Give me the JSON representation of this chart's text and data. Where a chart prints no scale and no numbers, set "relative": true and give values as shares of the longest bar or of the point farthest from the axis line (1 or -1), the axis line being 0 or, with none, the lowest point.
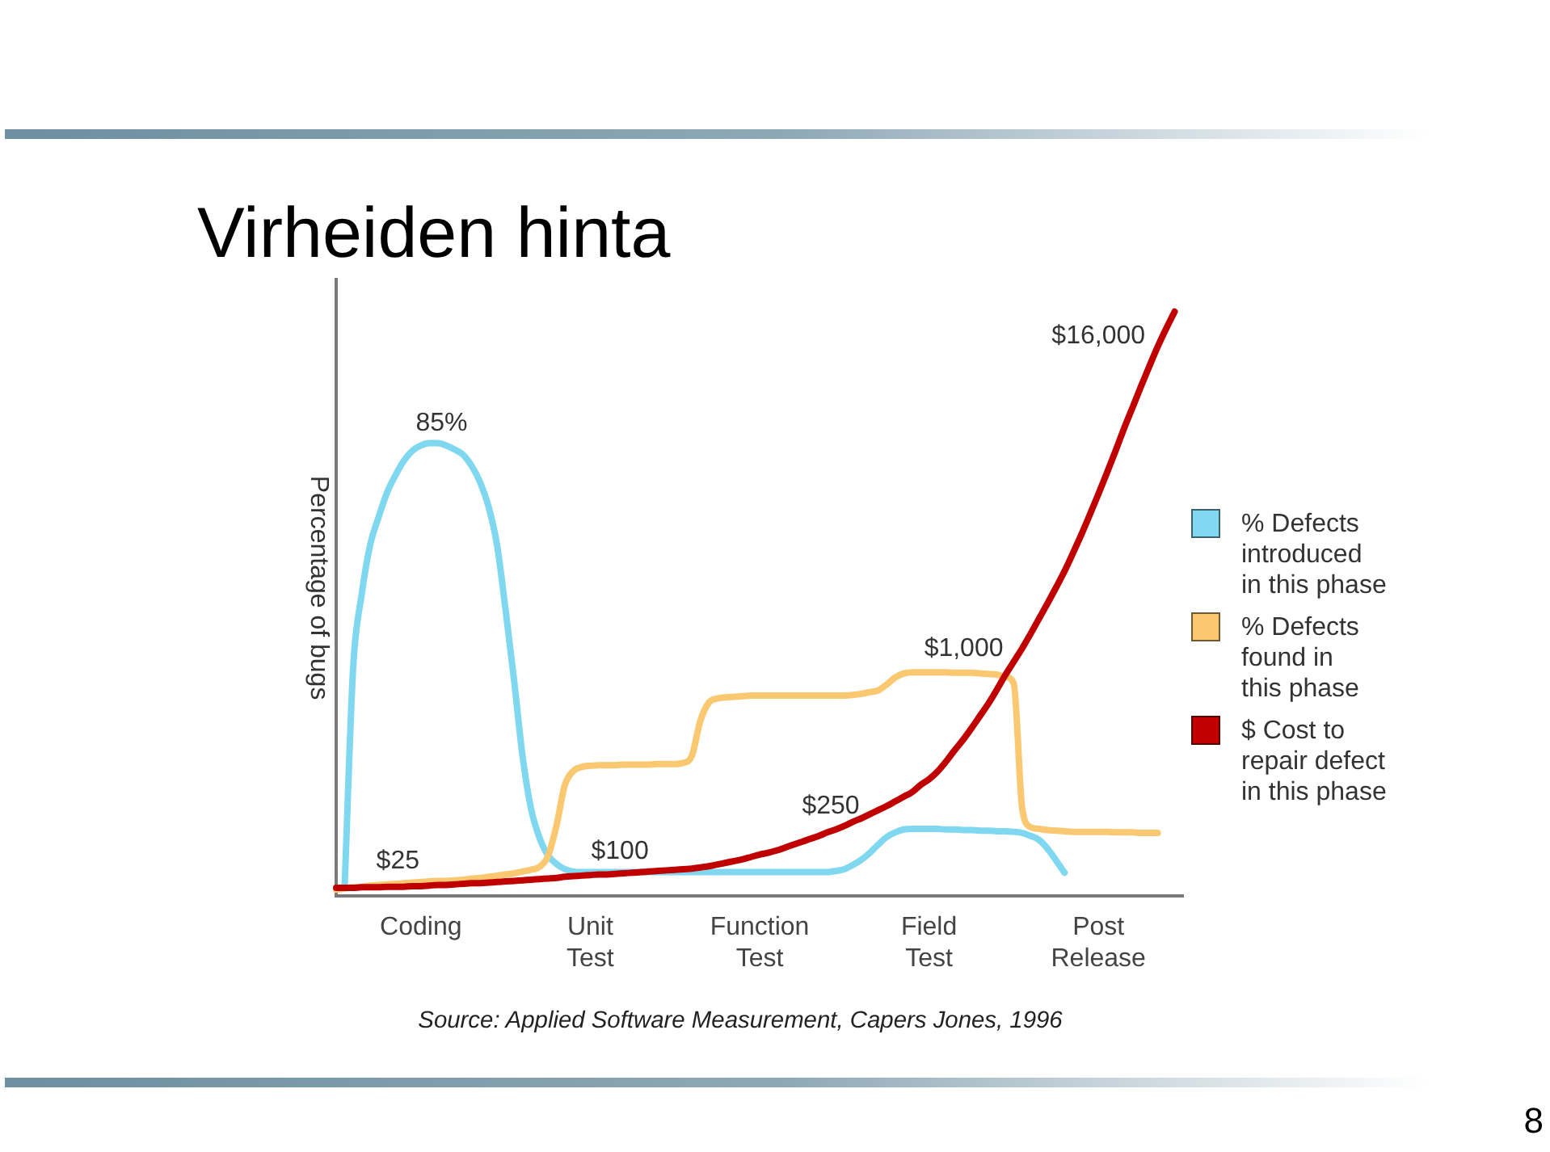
{
  "chart_data": {
    "type": "line",
    "title": "Virheiden hinta",
    "ylabel": "Percentage of bugs",
    "relative": true,
    "categories": [
      null,
      null,
      null,
      null,
      null,
      null,
      null,
      null,
      null,
      null,
      "Coding",
      null,
      null,
      null,
      null,
      null,
      null,
      null,
      null,
      null,
      null,
      null,
      null,
      null,
      null,
      null,
      null,
      null,
      null,
      null,
      "Unit Test",
      null,
      null,
      null,
      null,
      null,
      null,
      null,
      null,
      null,
      null,
      null,
      null,
      null,
      null,
      null,
      null,
      null,
      null,
      null,
      "Function Test",
      null,
      null,
      null,
      null,
      null,
      null,
      null,
      null,
      null,
      null,
      null,
      null,
      null,
      null,
      null,
      null,
      null,
      null,
      null,
      "Field Test",
      null,
      null,
      null,
      null,
      null,
      null,
      null,
      null,
      null,
      null,
      null,
      null,
      null,
      null,
      null,
      null,
      null,
      null,
      null,
      "Post Release",
      null,
      null,
      null,
      null,
      null,
      null,
      null,
      null,
      null,
      null
    ],
    "series": [
      {
        "name": "% Defects introduced in this phase",
        "color": "#80d8f0",
        "values": [
          null,
          0.017,
          0.39,
          0.515,
          0.6,
          0.648,
          0.69,
          0.72,
          0.745,
          0.762,
          0.771,
          0.775,
          0.775,
          0.771,
          0.764,
          0.755,
          0.736,
          0.708,
          0.666,
          0.6,
          0.49,
          0.37,
          0.24,
          0.15,
          0.1,
          0.07,
          0.055,
          0.046,
          0.042,
          0.041,
          0.041,
          0.041,
          0.041,
          0.041,
          0.041,
          0.041,
          0.041,
          0.041,
          0.041,
          0.041,
          0.041,
          0.041,
          0.041,
          0.041,
          0.041,
          0.041,
          0.041,
          0.041,
          0.041,
          0.041,
          0.041,
          0.041,
          0.041,
          0.041,
          0.041,
          0.041,
          0.041,
          0.041,
          0.041,
          0.043,
          0.046,
          0.053,
          0.062,
          0.074,
          0.088,
          0.101,
          0.109,
          0.114,
          0.115,
          0.115,
          0.115,
          0.115,
          0.114,
          0.114,
          0.113,
          0.113,
          0.112,
          0.112,
          0.111,
          0.111,
          0.11,
          0.108,
          0.103,
          0.096,
          0.081,
          0.061,
          0.04,
          null,
          null,
          null,
          null,
          null,
          null,
          null,
          null,
          null,
          null,
          null,
          null,
          null,
          null
        ]
      },
      {
        "name": "% Defects found in this phase",
        "color": "#f9c870",
        "values": [
          0.011,
          0.013,
          0.015,
          0.016,
          0.018,
          0.019,
          0.02,
          0.021,
          0.022,
          0.023,
          0.024,
          0.025,
          0.026,
          0.026,
          0.027,
          0.028,
          0.03,
          0.031,
          0.033,
          0.035,
          0.037,
          0.039,
          0.042,
          0.045,
          0.05,
          0.068,
          0.12,
          0.19,
          0.214,
          0.221,
          0.223,
          0.224,
          0.224,
          0.224,
          0.225,
          0.225,
          0.225,
          0.225,
          0.226,
          0.226,
          0.226,
          0.228,
          0.24,
          0.3,
          0.331,
          0.338,
          0.34,
          0.341,
          0.342,
          0.343,
          0.343,
          0.343,
          0.343,
          0.343,
          0.343,
          0.343,
          0.343,
          0.343,
          0.343,
          0.343,
          0.343,
          0.344,
          0.346,
          0.349,
          0.352,
          0.362,
          0.374,
          0.381,
          0.383,
          0.383,
          0.383,
          0.383,
          0.383,
          0.382,
          0.382,
          0.382,
          0.381,
          0.38,
          0.379,
          0.375,
          0.364,
          0.15,
          0.118,
          0.115,
          0.113,
          0.112,
          0.111,
          0.11,
          0.11,
          0.11,
          0.11,
          0.11,
          0.109,
          0.109,
          0.109,
          0.108,
          0.108,
          0.108,
          null,
          null,
          null
        ]
      },
      {
        "name": "$ Cost to repair defect in this phase",
        "color": "#c00000",
        "values": [
          0.014,
          0.014,
          0.014,
          0.015,
          0.015,
          0.015,
          0.016,
          0.016,
          0.016,
          0.017,
          0.017,
          0.018,
          0.019,
          0.019,
          0.02,
          0.021,
          0.022,
          0.022,
          0.023,
          0.024,
          0.025,
          0.026,
          0.027,
          0.028,
          0.029,
          0.03,
          0.031,
          0.033,
          0.034,
          0.035,
          0.036,
          0.037,
          0.037,
          0.038,
          0.039,
          0.04,
          0.041,
          0.042,
          0.043,
          0.044,
          0.045,
          0.046,
          0.047,
          0.049,
          0.051,
          0.054,
          0.057,
          0.06,
          0.063,
          0.067,
          0.071,
          0.074,
          0.078,
          0.083,
          0.088,
          0.093,
          0.098,
          0.103,
          0.109,
          0.114,
          0.12,
          0.127,
          0.133,
          0.14,
          0.147,
          0.154,
          0.162,
          0.17,
          0.178,
          0.19,
          0.2,
          0.213,
          0.23,
          0.249,
          0.267,
          0.287,
          0.308,
          0.329,
          0.353,
          0.378,
          0.401,
          0.424,
          0.449,
          0.475,
          0.501,
          0.528,
          0.556,
          0.587,
          0.619,
          0.653,
          0.688,
          0.724,
          0.761,
          0.799,
          0.835,
          0.871,
          0.906,
          0.94,
          0.971,
          1,
          null
        ]
      }
    ],
    "annotations": [
      "85%",
      "$25",
      "$100",
      "$250",
      "$1,000",
      "$16,000",
      "Source: Applied Software Measurement, Capers Jones, 1996",
      "8"
    ],
    "legend": "right",
    "marker": "none",
    "tick_labels": "x"
  }
}
